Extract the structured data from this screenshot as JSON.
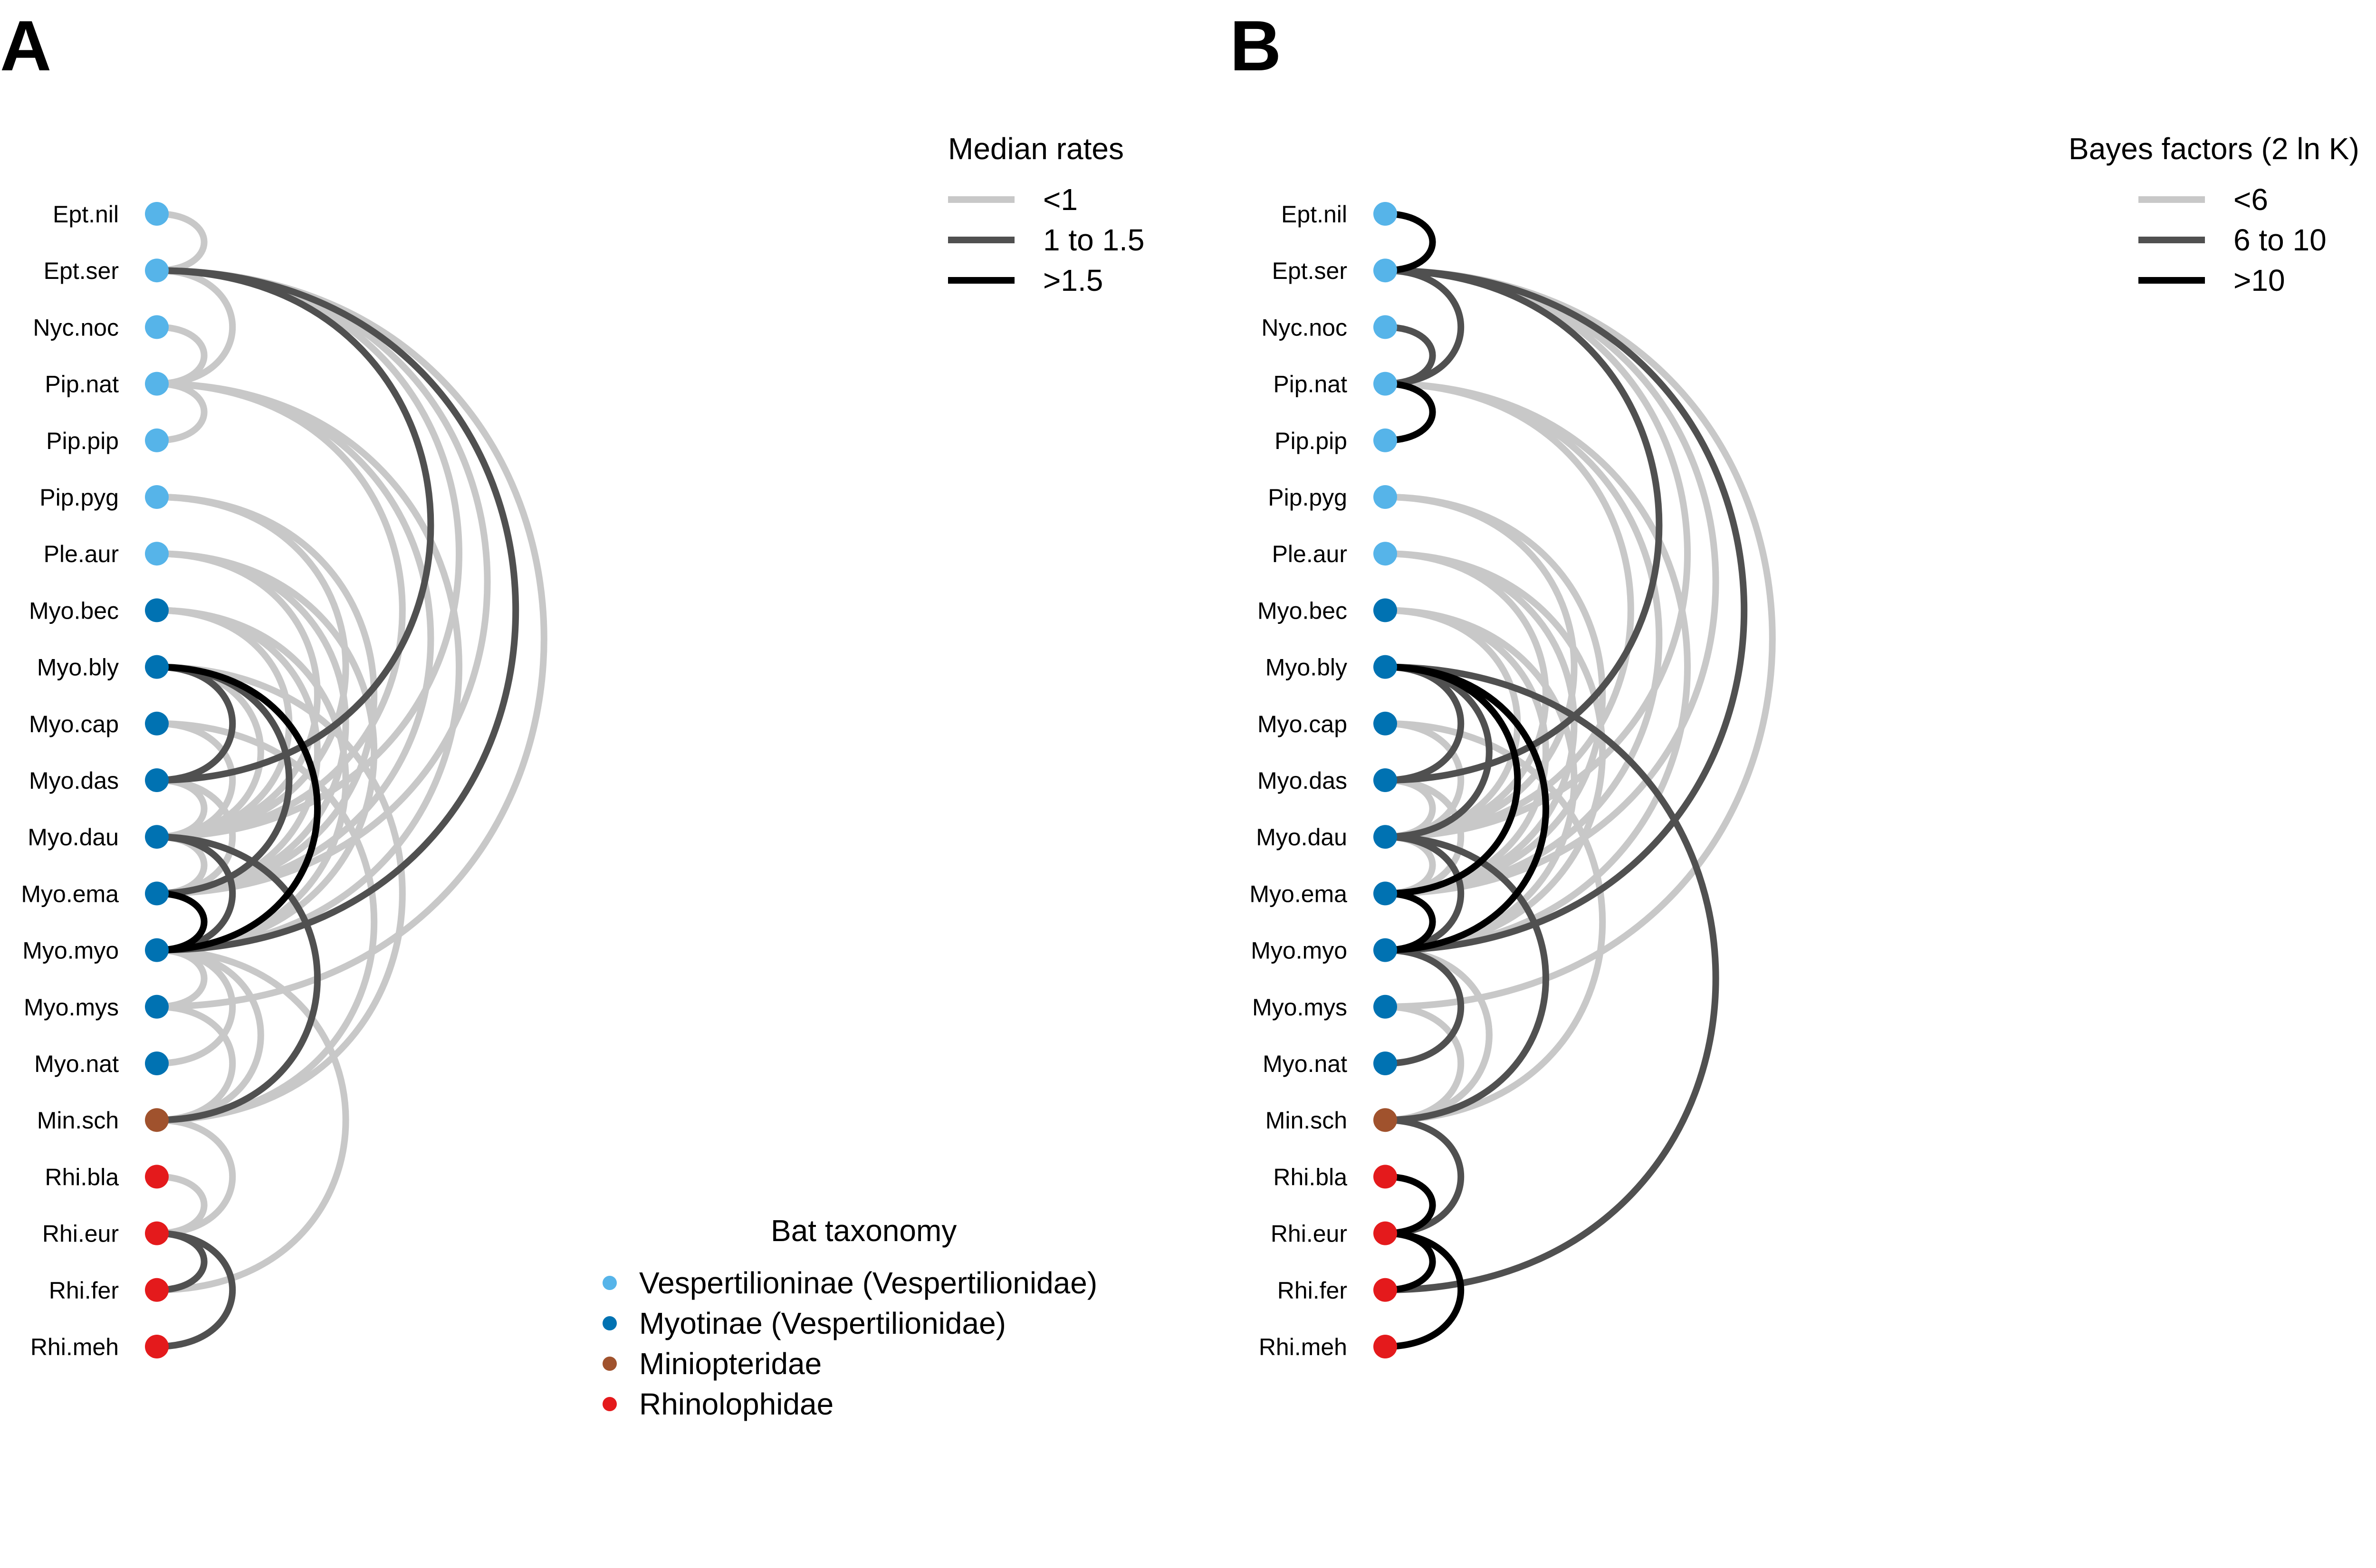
{
  "nodes": [
    "Ept.nil",
    "Ept.ser",
    "Nyc.noc",
    "Pip.nat",
    "Pip.pip",
    "Pip.pyg",
    "Ple.aur",
    "Myo.bec",
    "Myo.bly",
    "Myo.cap",
    "Myo.das",
    "Myo.dau",
    "Myo.ema",
    "Myo.myo",
    "Myo.mys",
    "Myo.nat",
    "Min.sch",
    "Rhi.bla",
    "Rhi.eur",
    "Rhi.fer",
    "Rhi.meh"
  ],
  "node_groups": [
    "vesp",
    "vesp",
    "vesp",
    "vesp",
    "vesp",
    "vesp",
    "vesp",
    "myot",
    "myot",
    "myot",
    "myot",
    "myot",
    "myot",
    "myot",
    "myot",
    "myot",
    "mini",
    "rhin",
    "rhin",
    "rhin",
    "rhin"
  ],
  "taxonomy_legend": {
    "title": "Bat taxonomy",
    "items": [
      {
        "key": "vesp",
        "label": "Vespertilioninae (Vespertilionidae)",
        "color": "#56B4E9"
      },
      {
        "key": "myot",
        "label": "Myotinae (Vespertilionidae)",
        "color": "#0072B2"
      },
      {
        "key": "mini",
        "label": "Miniopteridae",
        "color": "#A0522D"
      },
      {
        "key": "rhin",
        "label": "Rhinolophidae",
        "color": "#E41A1C"
      }
    ]
  },
  "edge_colors": [
    "#c8c8c8",
    "#505050",
    "#000000"
  ],
  "panels": [
    {
      "letter": "A",
      "legend": {
        "title": "Median rates",
        "items": [
          "<1",
          "1 to 1.5",
          ">1.5"
        ]
      },
      "edges": [
        [
          0,
          1,
          0
        ],
        [
          1,
          3,
          0
        ],
        [
          2,
          3,
          0
        ],
        [
          3,
          4,
          0
        ],
        [
          1,
          10,
          1
        ],
        [
          1,
          13,
          1
        ],
        [
          1,
          11,
          0
        ],
        [
          1,
          12,
          0
        ],
        [
          1,
          14,
          0
        ],
        [
          3,
          11,
          0
        ],
        [
          3,
          13,
          0
        ],
        [
          3,
          12,
          0
        ],
        [
          5,
          11,
          0
        ],
        [
          5,
          12,
          0
        ],
        [
          6,
          11,
          0
        ],
        [
          6,
          13,
          0
        ],
        [
          6,
          12,
          0
        ],
        [
          7,
          11,
          0
        ],
        [
          7,
          13,
          0
        ],
        [
          7,
          12,
          0
        ],
        [
          8,
          10,
          1
        ],
        [
          8,
          12,
          1
        ],
        [
          8,
          13,
          2
        ],
        [
          8,
          16,
          0
        ],
        [
          8,
          11,
          0
        ],
        [
          9,
          11,
          0
        ],
        [
          9,
          16,
          0
        ],
        [
          10,
          11,
          0
        ],
        [
          10,
          12,
          0
        ],
        [
          11,
          12,
          0
        ],
        [
          11,
          13,
          1
        ],
        [
          11,
          16,
          1
        ],
        [
          12,
          13,
          2
        ],
        [
          13,
          14,
          0
        ],
        [
          13,
          15,
          0
        ],
        [
          13,
          16,
          0
        ],
        [
          14,
          16,
          0
        ],
        [
          16,
          18,
          0
        ],
        [
          17,
          18,
          0
        ],
        [
          18,
          19,
          1
        ],
        [
          18,
          20,
          1
        ],
        [
          19,
          13,
          0
        ]
      ]
    },
    {
      "letter": "B",
      "legend": {
        "title": "Bayes factors (2 ln K)",
        "items": [
          "<6",
          "6 to 10",
          ">10"
        ]
      },
      "edges": [
        [
          0,
          1,
          2
        ],
        [
          1,
          3,
          1
        ],
        [
          2,
          3,
          1
        ],
        [
          3,
          4,
          2
        ],
        [
          1,
          10,
          1
        ],
        [
          1,
          13,
          1
        ],
        [
          1,
          11,
          0
        ],
        [
          1,
          12,
          0
        ],
        [
          1,
          14,
          0
        ],
        [
          3,
          11,
          0
        ],
        [
          3,
          13,
          0
        ],
        [
          3,
          12,
          0
        ],
        [
          5,
          11,
          0
        ],
        [
          5,
          12,
          0
        ],
        [
          6,
          11,
          0
        ],
        [
          6,
          13,
          0
        ],
        [
          6,
          12,
          0
        ],
        [
          7,
          11,
          0
        ],
        [
          7,
          13,
          0
        ],
        [
          7,
          12,
          0
        ],
        [
          8,
          10,
          1
        ],
        [
          8,
          12,
          2
        ],
        [
          8,
          13,
          2
        ],
        [
          8,
          11,
          1
        ],
        [
          8,
          19,
          1
        ],
        [
          9,
          11,
          0
        ],
        [
          9,
          16,
          0
        ],
        [
          10,
          11,
          0
        ],
        [
          10,
          12,
          0
        ],
        [
          11,
          12,
          0
        ],
        [
          11,
          13,
          1
        ],
        [
          11,
          16,
          1
        ],
        [
          12,
          13,
          2
        ],
        [
          13,
          15,
          1
        ],
        [
          13,
          16,
          0
        ],
        [
          14,
          16,
          0
        ],
        [
          16,
          18,
          1
        ],
        [
          17,
          18,
          2
        ],
        [
          18,
          19,
          2
        ],
        [
          18,
          20,
          2
        ],
        [
          16,
          13,
          0
        ]
      ]
    }
  ]
}
